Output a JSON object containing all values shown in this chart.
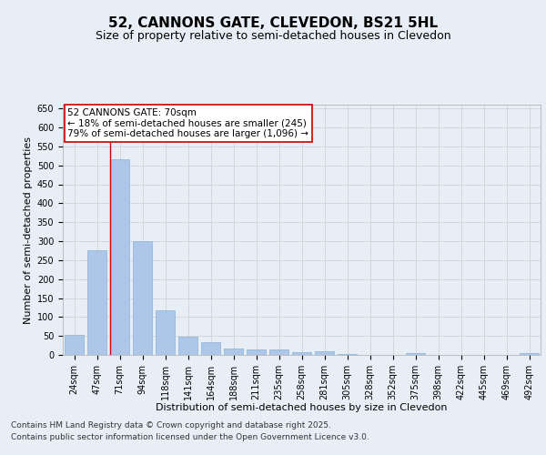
{
  "title1": "52, CANNONS GATE, CLEVEDON, BS21 5HL",
  "title2": "Size of property relative to semi-detached houses in Clevedon",
  "xlabel": "Distribution of semi-detached houses by size in Clevedon",
  "ylabel": "Number of semi-detached properties",
  "categories": [
    "24sqm",
    "47sqm",
    "71sqm",
    "94sqm",
    "118sqm",
    "141sqm",
    "164sqm",
    "188sqm",
    "211sqm",
    "235sqm",
    "258sqm",
    "281sqm",
    "305sqm",
    "328sqm",
    "352sqm",
    "375sqm",
    "398sqm",
    "422sqm",
    "445sqm",
    "469sqm",
    "492sqm"
  ],
  "values": [
    52,
    277,
    517,
    300,
    118,
    47,
    33,
    18,
    15,
    15,
    8,
    9,
    3,
    0,
    0,
    5,
    0,
    0,
    0,
    0,
    5
  ],
  "bar_color": "#aec6e8",
  "bar_edge_color": "#8ab4d8",
  "vline_color": "#cc0000",
  "vline_bin_index": 2,
  "annotation_title": "52 CANNONS GATE: 70sqm",
  "annotation_line1": "← 18% of semi-detached houses are smaller (245)",
  "annotation_line2": "79% of semi-detached houses are larger (1,096) →",
  "annotation_box_facecolor": "#ffffff",
  "annotation_box_edgecolor": "#cc0000",
  "ylim": [
    0,
    660
  ],
  "yticks": [
    0,
    50,
    100,
    150,
    200,
    250,
    300,
    350,
    400,
    450,
    500,
    550,
    600,
    650
  ],
  "grid_color": "#cccccc",
  "bg_color": "#e8eef5",
  "title_fontsize": 11,
  "subtitle_fontsize": 9,
  "axis_label_fontsize": 8,
  "tick_fontsize": 7,
  "annotation_fontsize": 7.5,
  "footnote_fontsize": 6.5,
  "footnote1": "Contains HM Land Registry data © Crown copyright and database right 2025.",
  "footnote2": "Contains public sector information licensed under the Open Government Licence v3.0."
}
